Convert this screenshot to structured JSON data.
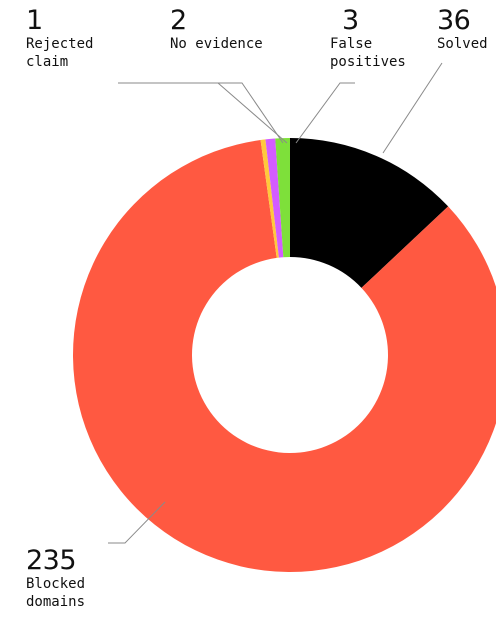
{
  "chart_data": {
    "type": "pie",
    "donut": true,
    "slices": [
      {
        "value": "36",
        "label": "Solved",
        "amount": 36,
        "color": "#000000"
      },
      {
        "value": "235",
        "label": "Blocked\ndomains",
        "amount": 235,
        "color": "#ff5941"
      },
      {
        "value": "1",
        "label": "Rejected\nclaim",
        "amount": 1,
        "color": "#ffc93c"
      },
      {
        "value": "2",
        "label": "No evidence",
        "amount": 2,
        "color": "#d35cff"
      },
      {
        "value": "3",
        "label": "False\npositives",
        "amount": 3,
        "color": "#7ee03a"
      }
    ]
  }
}
